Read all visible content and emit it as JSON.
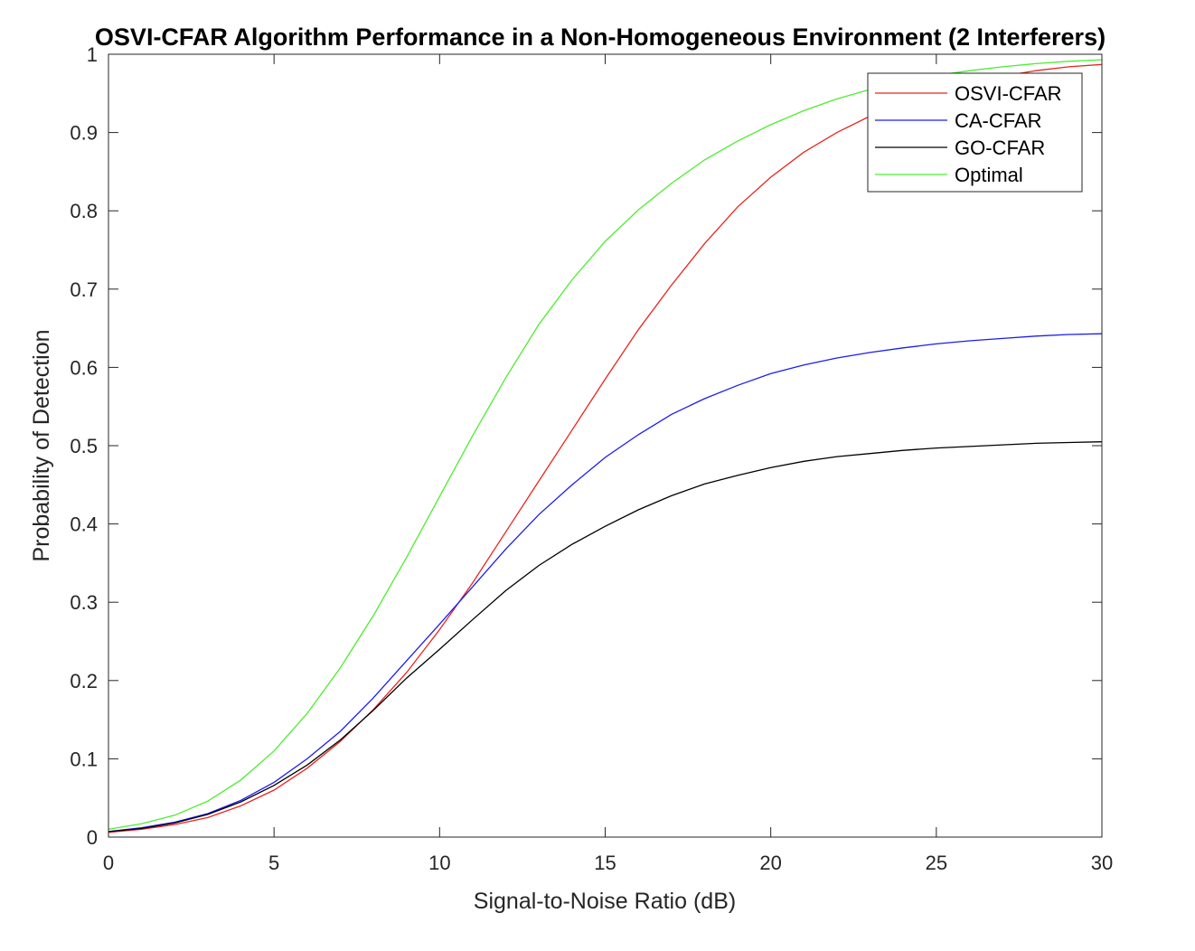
{
  "chart_data": {
    "type": "line",
    "title": "OSVI-CFAR Algorithm Performance in a Non-Homogeneous Environment (2 Interferers)",
    "xlabel": "Signal-to-Noise Ratio (dB)",
    "ylabel": "Probability of Detection",
    "xlim": [
      0,
      30
    ],
    "ylim": [
      0,
      1
    ],
    "xticks": [
      0,
      5,
      10,
      15,
      20,
      25,
      30
    ],
    "yticks": [
      0,
      0.1,
      0.2,
      0.3,
      0.4,
      0.5,
      0.6,
      0.7,
      0.8,
      0.9,
      1
    ],
    "ytick_labels": [
      "0",
      "0.1",
      "0.2",
      "0.3",
      "0.4",
      "0.5",
      "0.6",
      "0.7",
      "0.8",
      "0.9",
      "1"
    ],
    "grid": false,
    "legend_position": "top-right",
    "x": [
      0,
      1,
      2,
      3,
      4,
      5,
      6,
      7,
      8,
      9,
      10,
      11,
      12,
      13,
      14,
      15,
      16,
      17,
      18,
      19,
      20,
      21,
      22,
      23,
      24,
      25,
      26,
      27,
      28,
      29,
      30
    ],
    "series": [
      {
        "name": "OSVI-CFAR",
        "color": "#e8251f",
        "values": [
          0.006,
          0.01,
          0.016,
          0.025,
          0.04,
          0.06,
          0.088,
          0.122,
          0.163,
          0.21,
          0.265,
          0.325,
          0.39,
          0.455,
          0.52,
          0.585,
          0.648,
          0.705,
          0.758,
          0.805,
          0.843,
          0.875,
          0.9,
          0.921,
          0.938,
          0.952,
          0.963,
          0.972,
          0.979,
          0.984,
          0.987
        ]
      },
      {
        "name": "CA-CFAR",
        "color": "#1c1cf0",
        "values": [
          0.007,
          0.012,
          0.019,
          0.03,
          0.047,
          0.07,
          0.1,
          0.135,
          0.178,
          0.225,
          0.272,
          0.32,
          0.368,
          0.412,
          0.45,
          0.485,
          0.514,
          0.54,
          0.56,
          0.577,
          0.592,
          0.603,
          0.612,
          0.619,
          0.625,
          0.63,
          0.634,
          0.637,
          0.64,
          0.642,
          0.643
        ]
      },
      {
        "name": "GO-CFAR",
        "color": "#000000",
        "values": [
          0.007,
          0.011,
          0.018,
          0.029,
          0.045,
          0.066,
          0.092,
          0.124,
          0.162,
          0.203,
          0.24,
          0.278,
          0.315,
          0.347,
          0.374,
          0.397,
          0.418,
          0.436,
          0.451,
          0.462,
          0.472,
          0.48,
          0.486,
          0.49,
          0.494,
          0.497,
          0.499,
          0.501,
          0.503,
          0.504,
          0.505
        ]
      },
      {
        "name": "Optimal",
        "color": "#4ded2f",
        "values": [
          0.01,
          0.017,
          0.028,
          0.046,
          0.073,
          0.11,
          0.158,
          0.216,
          0.283,
          0.357,
          0.435,
          0.513,
          0.587,
          0.655,
          0.712,
          0.761,
          0.801,
          0.835,
          0.865,
          0.889,
          0.91,
          0.928,
          0.943,
          0.955,
          0.965,
          0.973,
          0.979,
          0.984,
          0.988,
          0.991,
          0.993
        ]
      }
    ]
  }
}
